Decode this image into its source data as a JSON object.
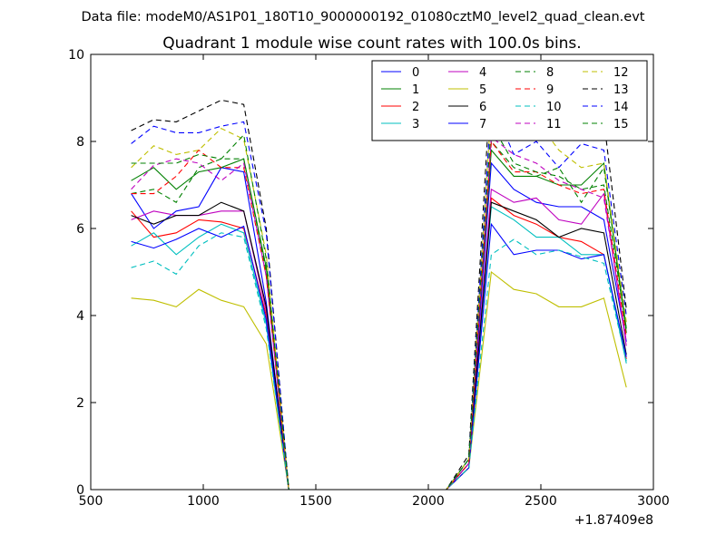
{
  "header": "Data file: modeM0/AS1P01_180T10_9000000192_01080cztM0_level2_quad_clean.evt",
  "chart_data": {
    "type": "line",
    "title": "Quadrant 1 module wise count rates with 100.0s bins.",
    "xlabel": "",
    "ylabel": "",
    "x_offset_label": "+1.87409e8",
    "xlim": [
      500,
      3000
    ],
    "ylim": [
      0,
      10
    ],
    "xticks": [
      500,
      1000,
      1500,
      2000,
      2500,
      3000
    ],
    "yticks": [
      0,
      2,
      4,
      6,
      8,
      10
    ],
    "grid": false,
    "legend_position": "top-right",
    "legend_columns": 4,
    "x": [
      680,
      780,
      880,
      980,
      1080,
      1180,
      1280,
      1380,
      1480,
      1580,
      1680,
      1780,
      1880,
      1980,
      2080,
      2180,
      2280,
      2380,
      2480,
      2580,
      2680,
      2780,
      2880
    ],
    "series": [
      {
        "name": "0",
        "color": "#0000ff",
        "dash": "solid",
        "values": [
          6.8,
          6.0,
          6.4,
          6.5,
          7.4,
          7.3,
          4.3,
          0,
          0,
          0,
          0,
          0,
          0,
          0,
          0,
          0.6,
          7.5,
          6.9,
          6.6,
          6.5,
          6.5,
          6.2,
          3.4
        ]
      },
      {
        "name": "1",
        "color": "#008000",
        "dash": "solid",
        "values": [
          7.1,
          7.4,
          6.9,
          7.3,
          7.4,
          7.6,
          5.1,
          0,
          0,
          0,
          0,
          0,
          0,
          0,
          0,
          0.7,
          7.8,
          7.2,
          7.2,
          7.0,
          7.0,
          7.5,
          3.6
        ]
      },
      {
        "name": "2",
        "color": "#ff0000",
        "dash": "solid",
        "values": [
          6.4,
          5.8,
          5.9,
          6.2,
          6.15,
          6.0,
          4.0,
          0,
          0,
          0,
          0,
          0,
          0,
          0,
          0,
          0.5,
          6.7,
          6.3,
          6.1,
          5.8,
          5.7,
          5.4,
          3.0
        ]
      },
      {
        "name": "3",
        "color": "#00bfbf",
        "dash": "solid",
        "values": [
          5.6,
          5.9,
          5.4,
          5.8,
          6.1,
          5.9,
          3.8,
          0,
          0,
          0,
          0,
          0,
          0,
          0,
          0,
          0.5,
          6.5,
          6.2,
          5.8,
          5.8,
          5.4,
          5.4,
          2.9
        ]
      },
      {
        "name": "4",
        "color": "#bf00bf",
        "dash": "solid",
        "values": [
          6.2,
          6.4,
          6.3,
          6.3,
          6.4,
          6.4,
          4.1,
          0,
          0,
          0,
          0,
          0,
          0,
          0,
          0,
          0.6,
          6.9,
          6.6,
          6.7,
          6.2,
          6.1,
          6.8,
          3.3
        ]
      },
      {
        "name": "5",
        "color": "#bfbf00",
        "dash": "solid",
        "values": [
          4.4,
          4.35,
          4.2,
          4.6,
          4.35,
          4.2,
          3.35,
          0,
          0,
          0,
          0,
          0,
          0,
          0,
          0,
          0.5,
          5.0,
          4.6,
          4.5,
          4.2,
          4.2,
          4.4,
          2.35
        ]
      },
      {
        "name": "6",
        "color": "#000000",
        "dash": "solid",
        "values": [
          6.3,
          6.1,
          6.3,
          6.3,
          6.6,
          6.4,
          4.2,
          0,
          0,
          0,
          0,
          0,
          0,
          0,
          0,
          0.6,
          6.6,
          6.4,
          6.2,
          5.8,
          6.0,
          5.9,
          3.1
        ]
      },
      {
        "name": "7",
        "color": "#0000ff",
        "dash": "solid",
        "values": [
          5.7,
          5.55,
          5.75,
          6.0,
          5.8,
          6.05,
          3.9,
          0,
          0,
          0,
          0,
          0,
          0,
          0,
          0,
          0.5,
          6.1,
          5.4,
          5.5,
          5.5,
          5.3,
          5.4,
          3.05
        ]
      },
      {
        "name": "8",
        "color": "#008000",
        "dash": "dashed",
        "values": [
          6.8,
          6.9,
          6.6,
          7.4,
          7.6,
          7.6,
          5.0,
          0,
          0,
          0,
          0,
          0,
          0,
          0,
          0,
          0.7,
          8.0,
          7.4,
          7.2,
          7.4,
          6.6,
          7.4,
          3.7
        ]
      },
      {
        "name": "9",
        "color": "#ff0000",
        "dash": "dashed",
        "values": [
          6.8,
          6.8,
          7.2,
          7.8,
          7.4,
          7.4,
          4.9,
          0,
          0,
          0,
          0,
          0,
          0,
          0,
          0,
          0.6,
          8.0,
          7.3,
          7.3,
          7.0,
          6.8,
          6.9,
          3.5
        ]
      },
      {
        "name": "10",
        "color": "#00bfbf",
        "dash": "dashed",
        "values": [
          5.1,
          5.25,
          4.95,
          5.6,
          5.9,
          5.8,
          3.7,
          0,
          0,
          0,
          0,
          0,
          0,
          0,
          0,
          0.5,
          5.4,
          5.75,
          5.4,
          5.5,
          5.35,
          5.2,
          2.95
        ]
      },
      {
        "name": "11",
        "color": "#bf00bf",
        "dash": "dashed",
        "values": [
          6.9,
          7.45,
          7.6,
          7.5,
          7.1,
          7.5,
          4.9,
          0,
          0,
          0,
          0,
          0,
          0,
          0,
          0,
          0.6,
          8.1,
          7.7,
          7.5,
          7.1,
          6.9,
          6.7,
          3.4
        ]
      },
      {
        "name": "12",
        "color": "#bfbf00",
        "dash": "dashed",
        "values": [
          7.4,
          7.9,
          7.7,
          7.8,
          8.3,
          8.05,
          5.4,
          0,
          0,
          0,
          0,
          0,
          0,
          0,
          0,
          0.7,
          8.8,
          8.4,
          8.5,
          7.8,
          7.4,
          7.5,
          3.85
        ]
      },
      {
        "name": "13",
        "color": "#000000",
        "dash": "dashed",
        "values": [
          8.25,
          8.5,
          8.45,
          8.7,
          8.95,
          8.85,
          6.0,
          0,
          0,
          0,
          0,
          0,
          0,
          0,
          0,
          0.8,
          9.6,
          8.6,
          8.9,
          8.5,
          8.45,
          8.5,
          4.15
        ]
      },
      {
        "name": "14",
        "color": "#0000ff",
        "dash": "dashed",
        "values": [
          7.95,
          8.35,
          8.2,
          8.2,
          8.35,
          8.45,
          5.9,
          0,
          0,
          0,
          0,
          0,
          0,
          0,
          0,
          0.7,
          8.9,
          7.7,
          8.0,
          7.4,
          7.95,
          7.8,
          4.0
        ]
      },
      {
        "name": "15",
        "color": "#008000",
        "dash": "dashed",
        "values": [
          7.5,
          7.5,
          7.5,
          7.7,
          7.6,
          8.15,
          5.3,
          0,
          0,
          0,
          0,
          0,
          0,
          0,
          0,
          0.7,
          8.4,
          7.5,
          7.3,
          7.2,
          6.9,
          7.0,
          3.7
        ]
      }
    ]
  }
}
